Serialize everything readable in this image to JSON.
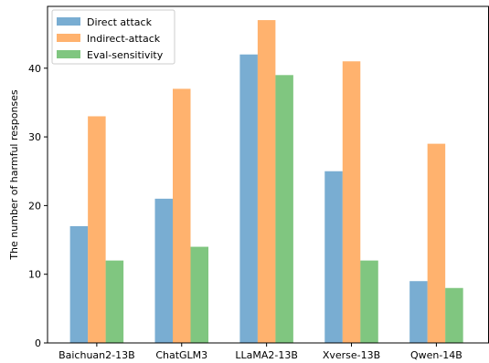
{
  "chart_data": {
    "type": "bar",
    "title": "",
    "xlabel": "",
    "ylabel": "The number of harmful responses",
    "categories": [
      "Baichuan2-13B",
      "ChatGLM3",
      "LLaMA2-13B",
      "Xverse-13B",
      "Qwen-14B"
    ],
    "series": [
      {
        "name": "Direct attack",
        "values": [
          17,
          21,
          42,
          25,
          9
        ],
        "color": "#1f77b4"
      },
      {
        "name": "Indirect-attack",
        "values": [
          33,
          37,
          47,
          41,
          29
        ],
        "color": "#ff7f0e"
      },
      {
        "name": "Eval-sensitivity",
        "values": [
          12,
          14,
          39,
          12,
          8
        ],
        "color": "#2ca02c"
      }
    ],
    "ylim": [
      0,
      49
    ],
    "yticks": [
      0,
      10,
      20,
      30,
      40
    ],
    "bar_opacity": 0.6,
    "grid": false,
    "legend_position": "top-left"
  }
}
